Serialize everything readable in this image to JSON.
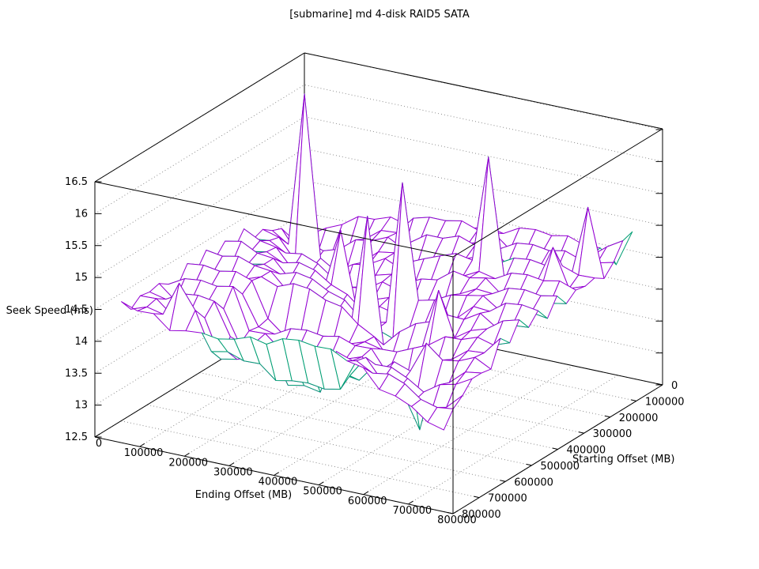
{
  "title": "[submarine] md 4-disk RAID5 SATA",
  "chart_data": {
    "type": "surface3d-wireframe",
    "title": "[submarine] md 4-disk RAID5 SATA",
    "xlabel": "Ending Offset (MB)",
    "ylabel": "Starting Offset (MB)",
    "zlabel": "Seek Speed (ms)",
    "xlim": [
      0,
      800000
    ],
    "ylim": [
      0,
      800000
    ],
    "zlim": [
      12.5,
      16.5
    ],
    "x_ticks": [
      0,
      100000,
      200000,
      300000,
      400000,
      500000,
      600000,
      700000,
      800000
    ],
    "y_ticks": [
      0,
      100000,
      200000,
      300000,
      400000,
      500000,
      600000,
      700000,
      800000
    ],
    "z_ticks": [
      12.5,
      13,
      13.5,
      14,
      14.5,
      15,
      15.5,
      16,
      16.5
    ],
    "grid": true,
    "hidden3d": true,
    "legend": "none",
    "colors": {
      "surface_top": "#9400d3",
      "surface_bottom": "#009e73",
      "grid_line": "#8c8c8c",
      "box_line": "#000000",
      "background": "#ffffff"
    },
    "x_start": 30000,
    "x_step": 36000,
    "y_start": 30000,
    "y_step": 36000,
    "n": 21,
    "z_grid": [
      [
        13.78,
        13.65,
        13.91,
        14.14,
        14.2,
        14.31,
        14.25,
        14.5,
        14.28,
        14.49,
        14.32,
        14.53,
        14.3,
        14.5,
        14.25,
        14.36,
        14.46,
        14.42,
        14.45,
        14.33,
        14.54
      ],
      [
        13.93,
        13.58,
        13.9,
        13.8,
        14.04,
        14.24,
        14.28,
        14.37,
        14.29,
        14.54,
        14.28,
        14.49,
        14.32,
        14.53,
        14.3,
        14.5,
        14.25,
        14.36,
        14.46,
        14.42,
        14.45
      ],
      [
        14.04,
        13.72,
        13.81,
        13.7,
        16.45,
        13.93,
        14.14,
        14.32,
        14.34,
        14.41,
        14.33,
        14.54,
        14.28,
        14.49,
        14.32,
        14.53,
        14.3,
        14.5,
        14.25,
        14.36,
        14.46
      ],
      [
        14.22,
        13.83,
        13.89,
        13.6,
        13.93,
        13.85,
        14.18,
        14.03,
        14.22,
        14.38,
        14.38,
        14.45,
        14.33,
        14.54,
        14.28,
        14.49,
        14.32,
        14.53,
        14.3,
        14.9,
        14.25
      ],
      [
        14.23,
        14.01,
        14.09,
        13.68,
        13.77,
        13.72,
        14.08,
        13.98,
        14.28,
        14.11,
        14.28,
        14.42,
        14.42,
        14.45,
        14.33,
        14.54,
        14.28,
        14.49,
        14.32,
        14.53,
        14.3
      ],
      [
        14.32,
        14.2,
        14.13,
        13.88,
        13.94,
        13.56,
        13.89,
        13.87,
        14.21,
        14.08,
        14.36,
        14.17,
        14.32,
        13.91,
        13.87,
        13.9,
        13.78,
        13.99,
        13.73,
        13.94,
        14.32
      ],
      [
        14.25,
        14.22,
        14.24,
        14.1,
        14.0,
        13.73,
        13.82,
        14.8,
        14.04,
        14.0,
        14.31,
        14.16,
        14.42,
        13.7,
        13.81,
        13.91,
        13.87,
        13.9,
        13.78,
        13.99,
        14.28
      ],
      [
        14.34,
        14.5,
        14.11,
        14.14,
        14.14,
        13.97,
        13.85,
        13.61,
        13.94,
        13.83,
        14.17,
        14.1,
        14.39,
        13.75,
        13.95,
        13.7,
        13.81,
        13.91,
        13.87,
        13.9,
        14.33
      ],
      [
        14.4,
        14.57,
        14.3,
        14.36,
        14.03,
        14.04,
        14.01,
        13.82,
        13.73,
        13.73,
        14.09,
        13.96,
        14.27,
        13.77,
        13.98,
        13.75,
        13.3,
        13.7,
        13.81,
        13.91,
        14.42
      ],
      [
        14.36,
        14.57,
        14.36,
        14.53,
        14.16,
        14.28,
        13.93,
        13.91,
        13.86,
        13.7,
        13.85,
        13.88,
        14.22,
        13.73,
        13.94,
        13.77,
        13.35,
        13.75,
        13.95,
        13.7,
        14.36
      ],
      [
        14.41,
        14.62,
        14.36,
        14.53,
        14.32,
        14.39,
        14.08,
        14.18,
        13.8,
        13.76,
        13.74,
        15.6,
        14.0,
        13.78,
        13.99,
        13.73,
        13.3,
        13.77,
        13.98,
        13.75,
        14.5
      ],
      [
        14.5,
        14.53,
        14.41,
        14.62,
        14.32,
        14.49,
        14.18,
        14.31,
        13.98,
        16.0,
        13.65,
        13.64,
        13.86,
        13.87,
        13.9,
        13.78,
        13.99,
        13.73,
        13.94,
        13.77,
        14.53
      ],
      [
        14.44,
        14.54,
        14.5,
        14.53,
        14.41,
        14.58,
        14.28,
        14.35,
        14.1,
        14.21,
        13.85,
        13.9,
        13.53,
        13.81,
        13.91,
        13.87,
        13.9,
        13.78,
        13.99,
        13.73,
        14.49
      ],
      [
        14.58,
        14.33,
        14.44,
        14.54,
        14.5,
        14.53,
        14.37,
        14.54,
        14.14,
        14.27,
        14.0,
        14.08,
        13.7,
        13.82,
        13.57,
        13.68,
        13.91,
        13.74,
        13.9,
        13.78,
        14.5
      ],
      [
        14.61,
        14.38,
        14.58,
        14.33,
        14.44,
        16.2,
        14.5,
        14.49,
        14.33,
        14.4,
        14.06,
        14.17,
        13.87,
        13.93,
        13.3,
        13.9,
        13.8,
        14.04,
        14.24,
        14.28,
        14.37
      ],
      [
        14.57,
        14.4,
        14.61,
        14.38,
        14.58,
        14.33,
        14.44,
        14.54,
        14.46,
        14.45,
        14.19,
        14.32,
        14.8,
        14.04,
        12.8,
        13.81,
        13.7,
        14.05,
        13.93,
        14.14,
        14.32
      ],
      [
        14.62,
        14.36,
        14.57,
        14.4,
        14.61,
        14.38,
        14.58,
        14.33,
        14.44,
        14.5,
        14.42,
        14.31,
        14.11,
        14.22,
        13.83,
        14.3,
        13.6,
        13.93,
        13.85,
        14.18,
        14.03
      ],
      [
        14.53,
        14.41,
        14.62,
        14.36,
        14.57,
        14.4,
        14.61,
        14.38,
        14.58,
        14.33,
        14.4,
        14.46,
        14.28,
        14.23,
        14.01,
        14.09,
        13.68,
        13.77,
        13.72,
        14.08,
        13.98
      ],
      [
        14.54,
        14.5,
        14.53,
        14.41,
        14.62,
        15.0,
        14.57,
        14.4,
        14.61,
        14.38,
        14.58,
        14.29,
        14.36,
        14.32,
        14.2,
        14.13,
        13.88,
        13.94,
        13.56,
        13.89,
        13.87
      ],
      [
        14.33,
        14.7,
        14.54,
        15.5,
        14.53,
        14.41,
        14.62,
        14.36,
        14.57,
        14.4,
        14.61,
        14.38,
        14.54,
        14.25,
        14.22,
        14.24,
        14.1,
        14.0,
        13.73,
        13.82,
        13.68
      ],
      [
        14.9,
        14.85,
        14.6,
        14.44,
        14.54,
        14.5,
        14.53,
        14.41,
        14.62,
        14.36,
        14.57,
        14.4,
        14.61,
        14.34,
        14.5,
        14.11,
        14.14,
        14.14,
        13.97,
        13.85,
        13.61
      ]
    ]
  }
}
